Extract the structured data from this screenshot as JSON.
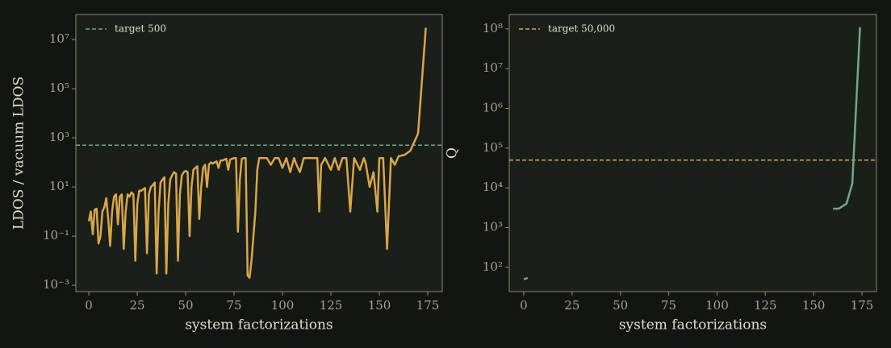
{
  "chart_data": [
    {
      "type": "line",
      "ylabel": "LDOS / vacuum LDOS",
      "xlabel": "system factorizations",
      "log_y": true,
      "legend": "upper left",
      "xlim": [
        -6.7,
        182.5
      ],
      "xticks": [
        0,
        25,
        50,
        75,
        100,
        125,
        150,
        175
      ],
      "ylim": [
        0.00055,
        105000000
      ],
      "yticks": [
        {
          "value": 0.001,
          "label": "10⁻³"
        },
        {
          "value": 0.1,
          "label": "10⁻¹"
        },
        {
          "value": 10,
          "label": "10¹"
        },
        {
          "value": 1000,
          "label": "10³"
        },
        {
          "value": 100000,
          "label": "10⁵"
        },
        {
          "value": 10000000,
          "label": "10⁷"
        }
      ],
      "reference": {
        "name": "target 500",
        "value": 500,
        "color": "#6fa88a"
      },
      "series": [
        {
          "color": "#d9a64a",
          "x": [
            0,
            1,
            2,
            3,
            4,
            5,
            6,
            7,
            8,
            9,
            10,
            11,
            12,
            13,
            14,
            15,
            16,
            17,
            18,
            19,
            20,
            21,
            22,
            23,
            24,
            25,
            26,
            27,
            28,
            29,
            30,
            31,
            32,
            33,
            34,
            35,
            36,
            37,
            38,
            39,
            40,
            41,
            42,
            43,
            44,
            45,
            46,
            47,
            48,
            49,
            50,
            51,
            52,
            53,
            54,
            55,
            56,
            57,
            58,
            59,
            60,
            61,
            62,
            63,
            64,
            65,
            66,
            67,
            68,
            69,
            70,
            71,
            72,
            73,
            74,
            75,
            76,
            77,
            78,
            79,
            80,
            81,
            82,
            83,
            84,
            85,
            86,
            87,
            88,
            90,
            92,
            94,
            96,
            98,
            100,
            102,
            104,
            106,
            107,
            109,
            111,
            113,
            116,
            118,
            119,
            120,
            122,
            125,
            127,
            129,
            131,
            133,
            135,
            137,
            140,
            142,
            143,
            145,
            147,
            149,
            150,
            152,
            154,
            156,
            158,
            160,
            163,
            166,
            170,
            174
          ],
          "values": [
            0.4,
            1,
            0.12,
            1.2,
            1.3,
            0.05,
            0.1,
            1,
            1.5,
            3.5,
            0.5,
            0.04,
            1,
            4,
            5,
            0.3,
            4,
            5,
            0.03,
            1,
            5,
            4,
            6,
            5,
            0.01,
            2,
            7,
            7,
            8,
            9,
            0.02,
            5,
            10,
            12,
            15,
            0.003,
            1,
            15,
            20,
            25,
            0.003,
            2,
            20,
            30,
            40,
            35,
            0.01,
            5,
            30,
            40,
            45,
            40,
            0.1,
            10,
            50,
            60,
            70,
            0.5,
            10,
            60,
            80,
            10,
            80,
            100,
            90,
            100,
            110,
            60,
            120,
            120,
            130,
            140,
            50,
            130,
            140,
            150,
            150,
            0.15,
            20,
            140,
            150,
            150,
            0.0025,
            0.002,
            0.01,
            0.1,
            1,
            50,
            150,
            150,
            150,
            80,
            150,
            150,
            60,
            150,
            40,
            150,
            90,
            40,
            150,
            150,
            150,
            150,
            1,
            80,
            150,
            50,
            150,
            50,
            150,
            150,
            1,
            150,
            50,
            150,
            90,
            10,
            40,
            1,
            150,
            150,
            0.03,
            150,
            80,
            180,
            200,
            300,
            1500,
            30000000
          ]
        }
      ]
    },
    {
      "type": "line",
      "ylabel": "Q",
      "xlabel": "system factorizations",
      "log_y": true,
      "legend": "upper left",
      "xlim": [
        -7.5,
        182.5
      ],
      "xticks": [
        0,
        25,
        50,
        75,
        100,
        125,
        150,
        175
      ],
      "ylim": [
        24.5,
        230000000
      ],
      "yticks": [
        {
          "value": 100,
          "label": "10²"
        },
        {
          "value": 1000,
          "label": "10³"
        },
        {
          "value": 10000,
          "label": "10⁴"
        },
        {
          "value": 100000,
          "label": "10⁵"
        },
        {
          "value": 1000000,
          "label": "10⁶"
        },
        {
          "value": 10000000,
          "label": "10⁷"
        },
        {
          "value": 100000000,
          "label": "10⁸"
        }
      ],
      "reference": {
        "name": "target 50,000",
        "value": 50000,
        "color": "#d9a64a"
      },
      "series": [
        {
          "color": "#6fa88a",
          "x": [
            0,
            2,
            4,
            160,
            163,
            167,
            170,
            174
          ],
          "values": [
            50,
            54,
            null,
            3000,
            3000,
            4000,
            13000,
            110000000
          ]
        }
      ]
    }
  ]
}
